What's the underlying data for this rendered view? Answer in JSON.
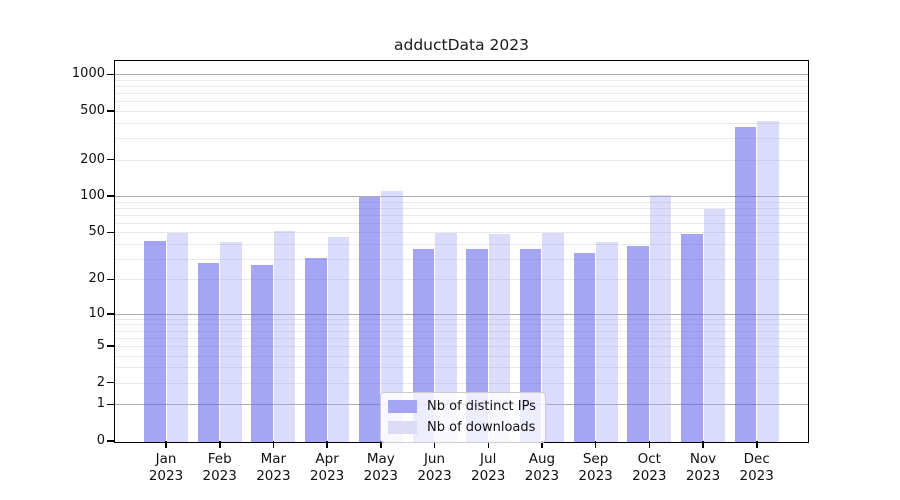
{
  "title": "adductData 2023",
  "chart_data": {
    "type": "bar",
    "title": "adductData 2023",
    "xlabel": "",
    "ylabel": "",
    "yscale": "log1p",
    "categories": [
      "Jan",
      "Feb",
      "Mar",
      "Apr",
      "May",
      "Jun",
      "Jul",
      "Aug",
      "Sep",
      "Oct",
      "Nov",
      "Dec"
    ],
    "year": "2023",
    "series": [
      {
        "name": "Nb of distinct IPs",
        "color": "#a5a5f5",
        "fill": "rgba(100,100,240,0.58)",
        "values": [
          43,
          28,
          27,
          31,
          100,
          37,
          37,
          37,
          34,
          39,
          49,
          380
        ]
      },
      {
        "name": "Nb of downloads",
        "color": "#dbdbf8",
        "fill": "rgba(160,160,245,0.38)",
        "values": [
          50,
          42,
          52,
          47,
          112,
          50,
          49,
          50,
          42,
          105,
          80,
          420
        ]
      }
    ],
    "yticks": [
      0,
      1,
      2,
      5,
      10,
      20,
      50,
      100,
      200,
      500,
      1000
    ],
    "grid_major": [
      1,
      10,
      100,
      1000
    ],
    "grid_minor": [
      2,
      3,
      4,
      5,
      6,
      7,
      8,
      9,
      20,
      30,
      40,
      50,
      60,
      70,
      80,
      90,
      200,
      300,
      400,
      500,
      600,
      700,
      800,
      900
    ],
    "grid_major_color": "#ababab",
    "grid_minor_color": "#e9e9e9",
    "ylim": [
      0,
      1285
    ],
    "grid": true,
    "legend_position": "inside-bottom-center"
  }
}
